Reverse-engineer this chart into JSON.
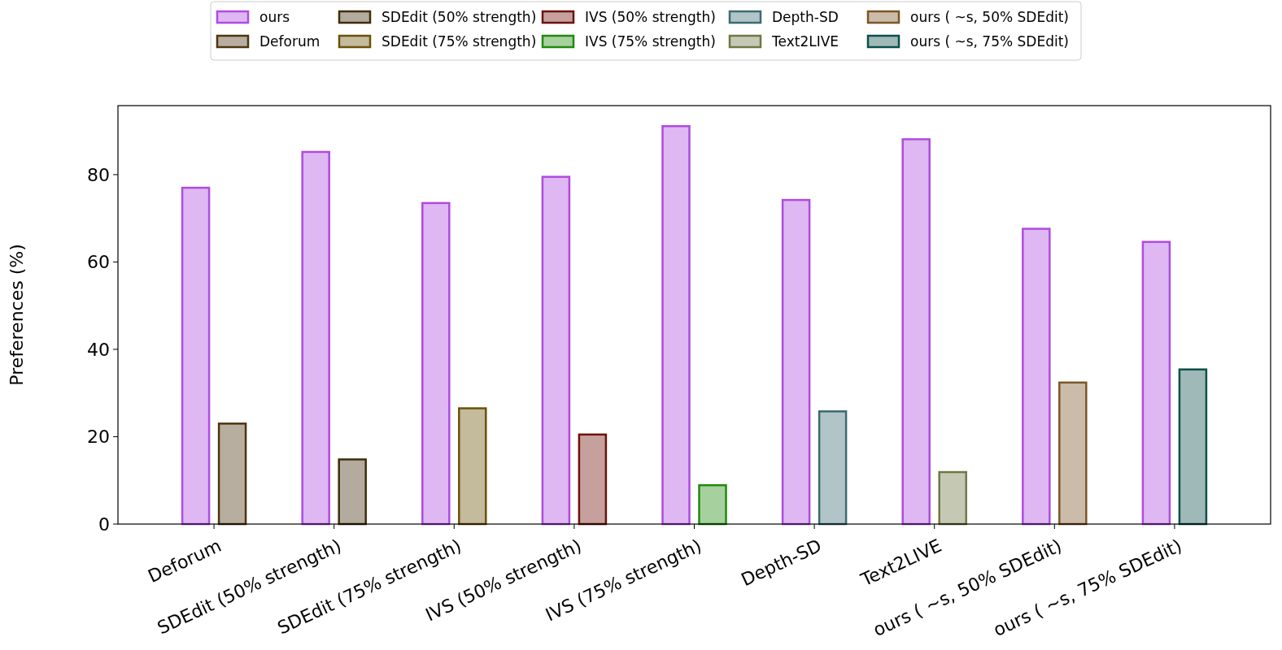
{
  "chart_data": {
    "type": "bar",
    "ylabel": "Preferences (%)",
    "categories": [
      "Deforum",
      "SDEdit (50% strength)",
      "SDEdit (75% strength)",
      "IVS (50% strength)",
      "IVS (75% strength)",
      "Depth-SD",
      "Text2LIVE",
      "ours ( ~s, 50% SDEdit)",
      "ours ( ~s, 75% SDEdit)"
    ],
    "series": [
      {
        "name": "ours",
        "color": "#b04be0",
        "values": [
          77,
          85.2,
          73.5,
          79.5,
          91.1,
          74.2,
          88.1,
          67.6,
          64.6
        ]
      },
      {
        "name": "Deforum",
        "color": "#4d3510",
        "values": [
          23,
          null,
          null,
          null,
          null,
          null,
          null,
          null,
          null
        ]
      },
      {
        "name": "SDEdit (50% strength)",
        "color": "#412d0a",
        "values": [
          null,
          14.8,
          null,
          null,
          null,
          null,
          null,
          null,
          null
        ]
      },
      {
        "name": "SDEdit (75% strength)",
        "color": "#6b5208",
        "values": [
          null,
          null,
          26.5,
          null,
          null,
          null,
          null,
          null,
          null
        ]
      },
      {
        "name": "IVS (50% strength)",
        "color": "#6e1208",
        "values": [
          null,
          null,
          null,
          20.5,
          null,
          null,
          null,
          null,
          null
        ]
      },
      {
        "name": "IVS (75% strength)",
        "color": "#208a0c",
        "values": [
          null,
          null,
          null,
          null,
          8.9,
          null,
          null,
          null,
          null
        ]
      },
      {
        "name": "Depth-SD",
        "color": "#3c6b72",
        "values": [
          null,
          null,
          null,
          null,
          null,
          25.8,
          null,
          null,
          null
        ]
      },
      {
        "name": "Text2LIVE",
        "color": "#6e7844",
        "values": [
          null,
          null,
          null,
          null,
          null,
          null,
          11.9,
          null,
          null
        ]
      },
      {
        "name": "ours ( ~s, 50% SDEdit)",
        "color": "#7d5528",
        "values": [
          null,
          null,
          null,
          null,
          null,
          null,
          null,
          32.4,
          null
        ]
      },
      {
        "name": "ours ( ~s, 75% SDEdit)",
        "color": "#0d4f4a",
        "values": [
          null,
          null,
          null,
          null,
          null,
          null,
          null,
          null,
          35.4
        ]
      }
    ],
    "ylim": [
      0,
      95.8
    ],
    "yticks": [
      0,
      20,
      40,
      60,
      80
    ],
    "grid": false,
    "legend": "top"
  }
}
